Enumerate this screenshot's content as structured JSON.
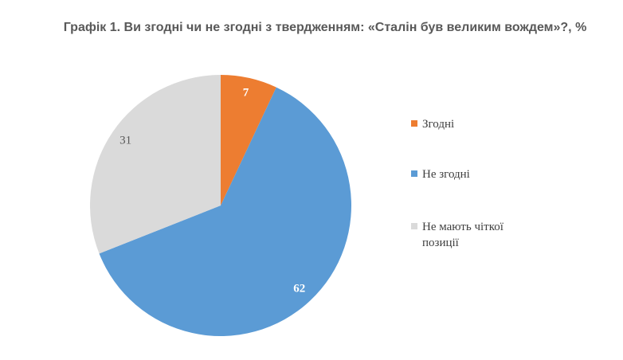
{
  "chart_data": {
    "type": "pie",
    "title": "Графік 1. Ви згодні чи не згодні з твердженням: «Сталін був великим вождем»?, %",
    "categories": [
      "Згодні",
      "Не згодні",
      "Не мають чіткої позиції"
    ],
    "values": [
      7,
      62,
      31
    ],
    "colors": [
      "#ed7d31",
      "#5b9bd5",
      "#dadada"
    ],
    "label_colors": [
      "#ffffff",
      "#ffffff",
      "#595959"
    ],
    "legend": "right"
  }
}
